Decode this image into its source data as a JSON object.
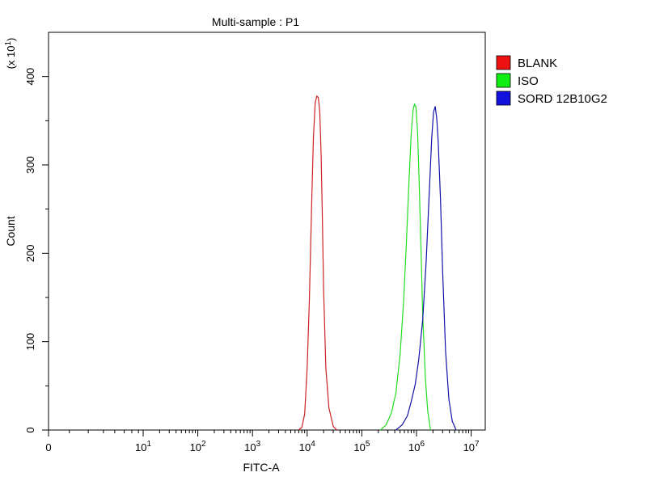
{
  "chart_data": {
    "type": "line",
    "title": "Multi-sample : P1",
    "xlabel": "FITC-A",
    "ylabel": "Count",
    "y_multiplier_base": "(x 10",
    "y_multiplier_exp": "1",
    "y_multiplier_close": ")",
    "x_scale": "log",
    "xlim": [
      0,
      10000000
    ],
    "ylim": [
      0,
      4500
    ],
    "grid": false,
    "legend_position": "top-right",
    "x_ticks": [
      {
        "value": 0,
        "base": "0",
        "exp": ""
      },
      {
        "value": 10,
        "base": "10",
        "exp": "1"
      },
      {
        "value": 100,
        "base": "10",
        "exp": "2"
      },
      {
        "value": 1000,
        "base": "10",
        "exp": "3"
      },
      {
        "value": 10000,
        "base": "10",
        "exp": "4"
      },
      {
        "value": 100000,
        "base": "10",
        "exp": "5"
      },
      {
        "value": 1000000,
        "base": "10",
        "exp": "6"
      },
      {
        "value": 10000000,
        "base": "10",
        "exp": "7"
      }
    ],
    "y_ticks": [
      {
        "value": 0,
        "label": "0"
      },
      {
        "value": 1000,
        "label": "100"
      },
      {
        "value": 2000,
        "label": "200"
      },
      {
        "value": 3000,
        "label": "300"
      },
      {
        "value": 4000,
        "label": "400"
      }
    ],
    "series": [
      {
        "name": "BLANK",
        "color": "#cc2222",
        "legend_color": "#ee1111",
        "x": [
          7000,
          8000,
          9000,
          10000,
          11000,
          12000,
          13000,
          14000,
          15000,
          16000,
          17000,
          18000,
          19000,
          20000,
          22000,
          25000,
          30000,
          35000
        ],
        "y": [
          0,
          30,
          180,
          700,
          1500,
          2500,
          3300,
          3700,
          3780,
          3760,
          3600,
          3100,
          2400,
          1600,
          700,
          250,
          40,
          0
        ]
      },
      {
        "name": "ISO",
        "color": "#22dd22",
        "legend_color": "#11ee11",
        "x": [
          220000,
          280000,
          350000,
          420000,
          500000,
          580000,
          650000,
          720000,
          800000,
          870000,
          920000,
          980000,
          1050000,
          1120000,
          1200000,
          1300000,
          1450000,
          1600000,
          1800000
        ],
        "y": [
          0,
          60,
          200,
          420,
          850,
          1450,
          2100,
          2750,
          3350,
          3630,
          3690,
          3650,
          3350,
          2800,
          2100,
          1300,
          600,
          220,
          0
        ]
      },
      {
        "name": "SORD 12B10G2",
        "color": "#1111aa",
        "legend_color": "#1111dd",
        "x": [
          420000,
          550000,
          680000,
          800000,
          950000,
          1100000,
          1300000,
          1500000,
          1700000,
          1900000,
          2050000,
          2200000,
          2350000,
          2500000,
          2750000,
          3000000,
          3400000,
          3900000,
          4500000,
          5300000
        ],
        "y": [
          0,
          60,
          160,
          320,
          520,
          800,
          1250,
          1900,
          2650,
          3300,
          3600,
          3660,
          3520,
          3250,
          2600,
          1800,
          900,
          350,
          100,
          0
        ]
      }
    ]
  }
}
